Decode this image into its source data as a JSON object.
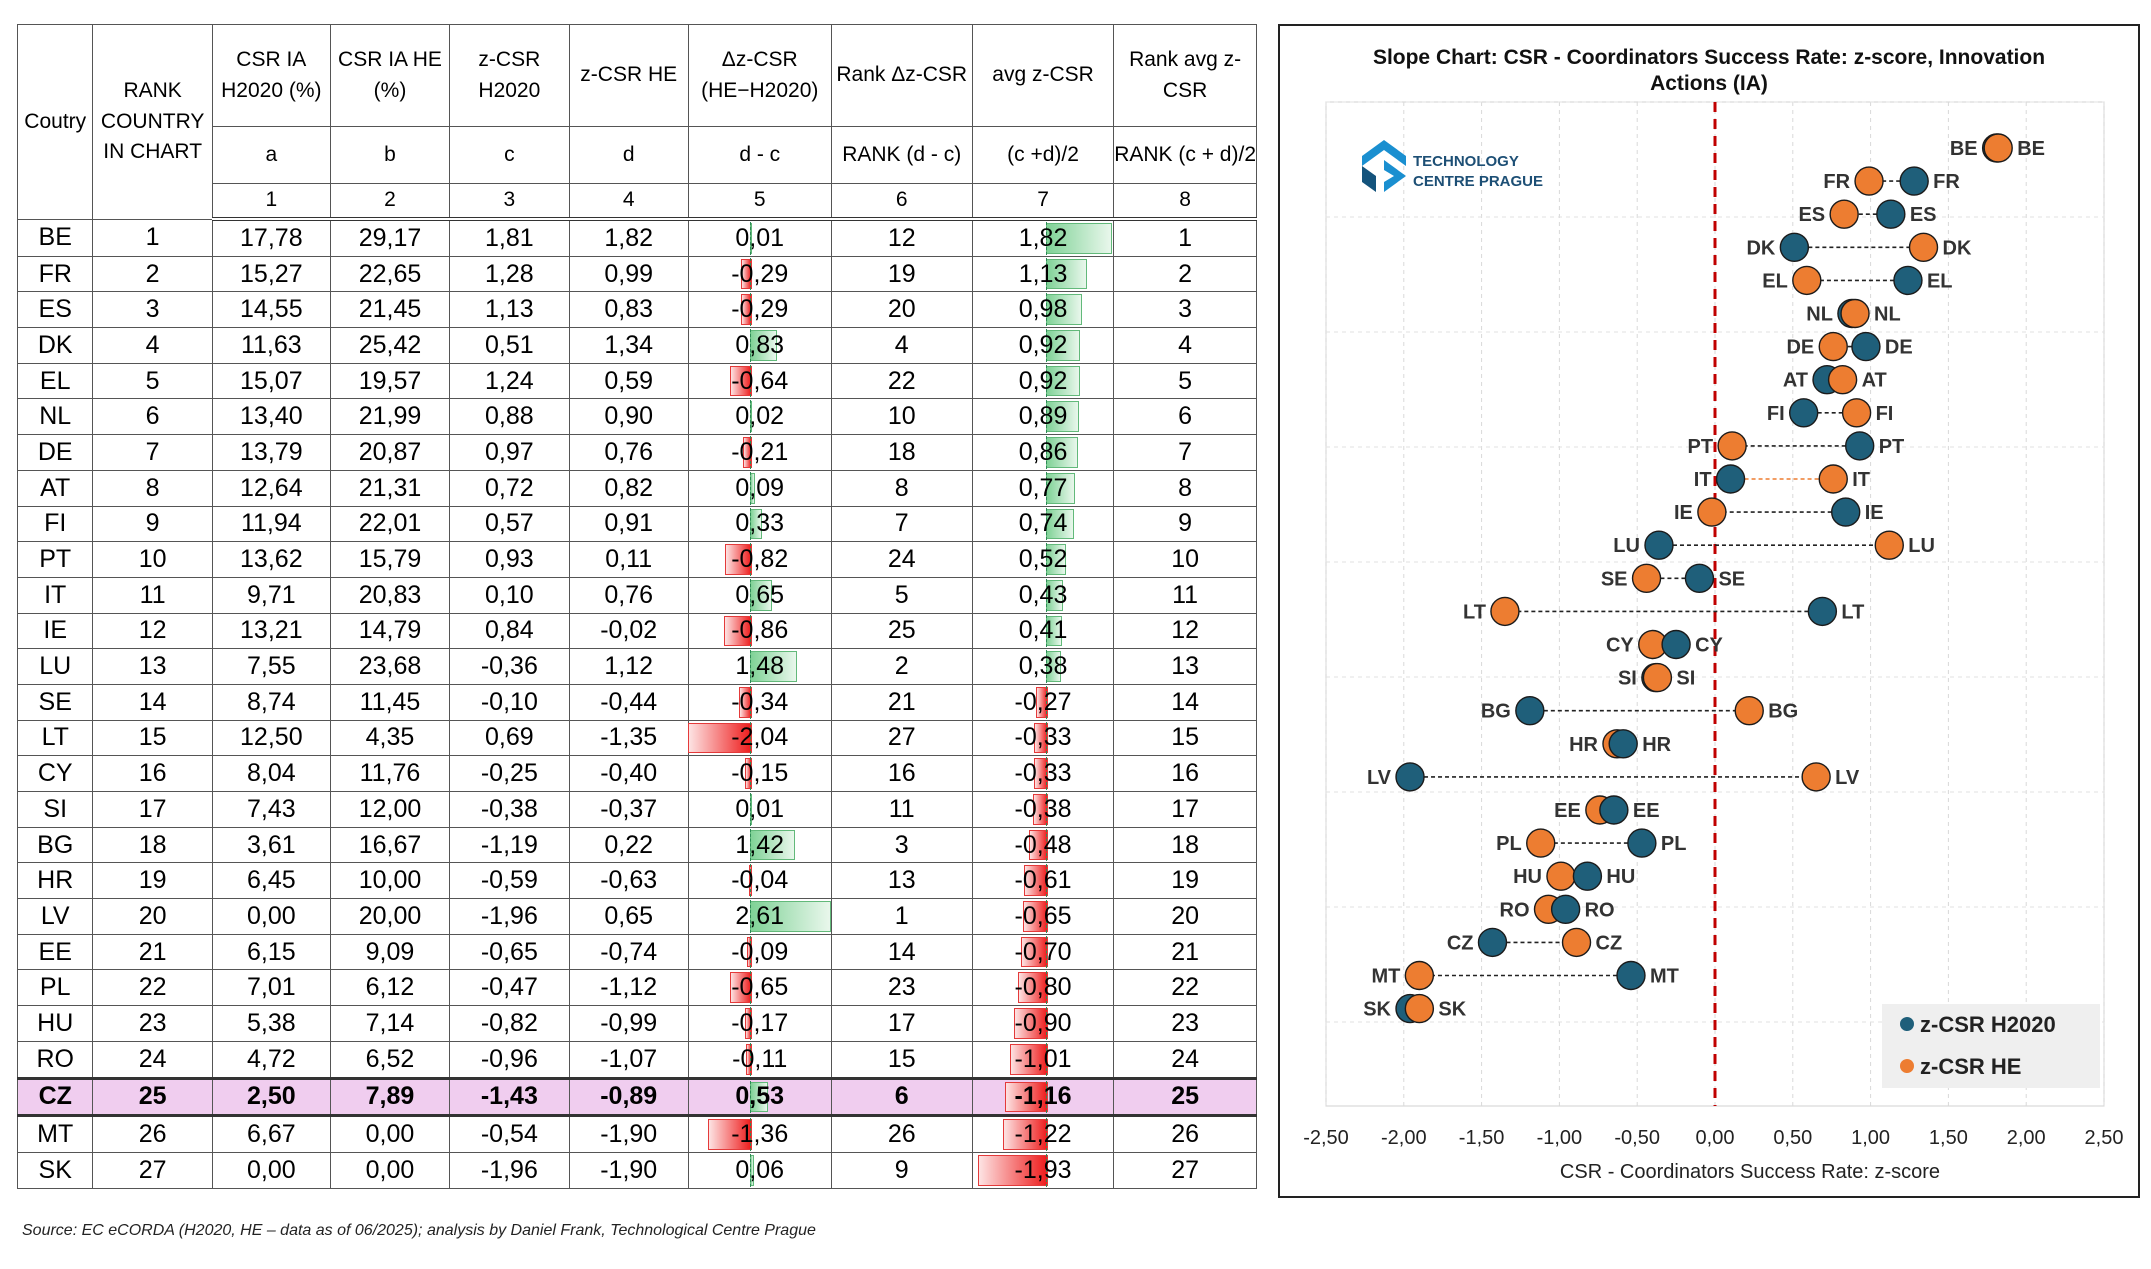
{
  "table": {
    "headers": [
      {
        "name": "Coutry",
        "formula": "",
        "index": ""
      },
      {
        "name": "RANK COUNTRY IN CHART",
        "formula": "",
        "index": ""
      },
      {
        "name": "CSR IA H2020 (%)",
        "formula": "a",
        "index": "1"
      },
      {
        "name": "CSR IA HE (%)",
        "formula": "b",
        "index": "2"
      },
      {
        "name": "z-CSR H2020",
        "formula": "c",
        "index": "3"
      },
      {
        "name": "z-CSR HE",
        "formula": "d",
        "index": "4"
      },
      {
        "name": "Δz-CSR (HE−H2020)",
        "formula": "d - c",
        "index": "5"
      },
      {
        "name": "Rank Δz-CSR",
        "formula": "RANK (d - c)",
        "index": "6"
      },
      {
        "name": "avg z-CSR",
        "formula": "(c +d)/2",
        "index": "7"
      },
      {
        "name": "Rank avg z-CSR",
        "formula": "RANK (c + d)/2",
        "index": "8"
      }
    ],
    "rows": [
      {
        "country": "BE",
        "rank": "1",
        "a": "17,78",
        "b": "29,17",
        "c": "1,81",
        "d": "1,82",
        "dz": "0,01",
        "rank_dz": "12",
        "avg": "1,82",
        "rank_avg": "1"
      },
      {
        "country": "FR",
        "rank": "2",
        "a": "15,27",
        "b": "22,65",
        "c": "1,28",
        "d": "0,99",
        "dz": "-0,29",
        "rank_dz": "19",
        "avg": "1,13",
        "rank_avg": "2"
      },
      {
        "country": "ES",
        "rank": "3",
        "a": "14,55",
        "b": "21,45",
        "c": "1,13",
        "d": "0,83",
        "dz": "-0,29",
        "rank_dz": "20",
        "avg": "0,98",
        "rank_avg": "3"
      },
      {
        "country": "DK",
        "rank": "4",
        "a": "11,63",
        "b": "25,42",
        "c": "0,51",
        "d": "1,34",
        "dz": "0,83",
        "rank_dz": "4",
        "avg": "0,92",
        "rank_avg": "4"
      },
      {
        "country": "EL",
        "rank": "5",
        "a": "15,07",
        "b": "19,57",
        "c": "1,24",
        "d": "0,59",
        "dz": "-0,64",
        "rank_dz": "22",
        "avg": "0,92",
        "rank_avg": "5"
      },
      {
        "country": "NL",
        "rank": "6",
        "a": "13,40",
        "b": "21,99",
        "c": "0,88",
        "d": "0,90",
        "dz": "0,02",
        "rank_dz": "10",
        "avg": "0,89",
        "rank_avg": "6"
      },
      {
        "country": "DE",
        "rank": "7",
        "a": "13,79",
        "b": "20,87",
        "c": "0,97",
        "d": "0,76",
        "dz": "-0,21",
        "rank_dz": "18",
        "avg": "0,86",
        "rank_avg": "7"
      },
      {
        "country": "AT",
        "rank": "8",
        "a": "12,64",
        "b": "21,31",
        "c": "0,72",
        "d": "0,82",
        "dz": "0,09",
        "rank_dz": "8",
        "avg": "0,77",
        "rank_avg": "8"
      },
      {
        "country": "FI",
        "rank": "9",
        "a": "11,94",
        "b": "22,01",
        "c": "0,57",
        "d": "0,91",
        "dz": "0,33",
        "rank_dz": "7",
        "avg": "0,74",
        "rank_avg": "9"
      },
      {
        "country": "PT",
        "rank": "10",
        "a": "13,62",
        "b": "15,79",
        "c": "0,93",
        "d": "0,11",
        "dz": "-0,82",
        "rank_dz": "24",
        "avg": "0,52",
        "rank_avg": "10"
      },
      {
        "country": "IT",
        "rank": "11",
        "a": "9,71",
        "b": "20,83",
        "c": "0,10",
        "d": "0,76",
        "dz": "0,65",
        "rank_dz": "5",
        "avg": "0,43",
        "rank_avg": "11"
      },
      {
        "country": "IE",
        "rank": "12",
        "a": "13,21",
        "b": "14,79",
        "c": "0,84",
        "d": "-0,02",
        "dz": "-0,86",
        "rank_dz": "25",
        "avg": "0,41",
        "rank_avg": "12"
      },
      {
        "country": "LU",
        "rank": "13",
        "a": "7,55",
        "b": "23,68",
        "c": "-0,36",
        "d": "1,12",
        "dz": "1,48",
        "rank_dz": "2",
        "avg": "0,38",
        "rank_avg": "13"
      },
      {
        "country": "SE",
        "rank": "14",
        "a": "8,74",
        "b": "11,45",
        "c": "-0,10",
        "d": "-0,44",
        "dz": "-0,34",
        "rank_dz": "21",
        "avg": "-0,27",
        "rank_avg": "14"
      },
      {
        "country": "LT",
        "rank": "15",
        "a": "12,50",
        "b": "4,35",
        "c": "0,69",
        "d": "-1,35",
        "dz": "-2,04",
        "rank_dz": "27",
        "avg": "-0,33",
        "rank_avg": "15"
      },
      {
        "country": "CY",
        "rank": "16",
        "a": "8,04",
        "b": "11,76",
        "c": "-0,25",
        "d": "-0,40",
        "dz": "-0,15",
        "rank_dz": "16",
        "avg": "-0,33",
        "rank_avg": "16"
      },
      {
        "country": "SI",
        "rank": "17",
        "a": "7,43",
        "b": "12,00",
        "c": "-0,38",
        "d": "-0,37",
        "dz": "0,01",
        "rank_dz": "11",
        "avg": "-0,38",
        "rank_avg": "17"
      },
      {
        "country": "BG",
        "rank": "18",
        "a": "3,61",
        "b": "16,67",
        "c": "-1,19",
        "d": "0,22",
        "dz": "1,42",
        "rank_dz": "3",
        "avg": "-0,48",
        "rank_avg": "18"
      },
      {
        "country": "HR",
        "rank": "19",
        "a": "6,45",
        "b": "10,00",
        "c": "-0,59",
        "d": "-0,63",
        "dz": "-0,04",
        "rank_dz": "13",
        "avg": "-0,61",
        "rank_avg": "19"
      },
      {
        "country": "LV",
        "rank": "20",
        "a": "0,00",
        "b": "20,00",
        "c": "-1,96",
        "d": "0,65",
        "dz": "2,61",
        "rank_dz": "1",
        "avg": "-0,65",
        "rank_avg": "20"
      },
      {
        "country": "EE",
        "rank": "21",
        "a": "6,15",
        "b": "9,09",
        "c": "-0,65",
        "d": "-0,74",
        "dz": "-0,09",
        "rank_dz": "14",
        "avg": "-0,70",
        "rank_avg": "21"
      },
      {
        "country": "PL",
        "rank": "22",
        "a": "7,01",
        "b": "6,12",
        "c": "-0,47",
        "d": "-1,12",
        "dz": "-0,65",
        "rank_dz": "23",
        "avg": "-0,80",
        "rank_avg": "22"
      },
      {
        "country": "HU",
        "rank": "23",
        "a": "5,38",
        "b": "7,14",
        "c": "-0,82",
        "d": "-0,99",
        "dz": "-0,17",
        "rank_dz": "17",
        "avg": "-0,90",
        "rank_avg": "23"
      },
      {
        "country": "RO",
        "rank": "24",
        "a": "4,72",
        "b": "6,52",
        "c": "-0,96",
        "d": "-1,07",
        "dz": "-0,11",
        "rank_dz": "15",
        "avg": "-1,01",
        "rank_avg": "24"
      },
      {
        "country": "CZ",
        "rank": "25",
        "a": "2,50",
        "b": "7,89",
        "c": "-1,43",
        "d": "-0,89",
        "dz": "0,53",
        "rank_dz": "6",
        "avg": "-1,16",
        "rank_avg": "25",
        "highlight": true
      },
      {
        "country": "MT",
        "rank": "26",
        "a": "6,67",
        "b": "0,00",
        "c": "-0,54",
        "d": "-1,90",
        "dz": "-1,36",
        "rank_dz": "26",
        "avg": "-1,22",
        "rank_avg": "26"
      },
      {
        "country": "SK",
        "rank": "27",
        "a": "0,00",
        "b": "0,00",
        "c": "-1,96",
        "d": "-1,90",
        "dz": "0,06",
        "rank_dz": "9",
        "avg": "-1,93",
        "rank_avg": "27"
      }
    ]
  },
  "source_note": "Source: EC eCORDA (H2020, HE – data as of 06/2025); analysis by Daniel Frank, Technological Centre Prague",
  "logo": {
    "line1": "TECHNOLOGY",
    "line2": "CENTRE PRAGUE"
  },
  "colors": {
    "h2020": "#1f5f7a",
    "he": "#ed7d31",
    "highlight_label": "#c00000",
    "zero_line": "#c00000",
    "highlight_row": "#f0cdef"
  },
  "chart_data": {
    "type": "scatter",
    "subtype": "dumbbell",
    "title": "Slope Chart: CSR - Coordinators Success Rate: z-score, Innovation Actions (IA)",
    "title_lines": [
      "Slope Chart: CSR - Coordinators Success Rate: z-score, Innovation",
      "Actions (IA)"
    ],
    "xlabel": "CSR - Coordinators Success Rate: z-score",
    "ylabel": "",
    "xlim": [
      -2.5,
      2.5
    ],
    "xticks": [
      "-2,50",
      "-2,00",
      "-1,50",
      "-1,00",
      "-0,50",
      "0,00",
      "0,50",
      "1,00",
      "1,50",
      "2,00",
      "2,50"
    ],
    "xtick_values": [
      -2.5,
      -2,
      -1.5,
      -1,
      -0.5,
      0,
      0.5,
      1,
      1.5,
      2,
      2.5
    ],
    "grid": true,
    "legend_position": "bottom-right",
    "highlight": "CZ",
    "categories": [
      "BE",
      "FR",
      "ES",
      "DK",
      "EL",
      "NL",
      "DE",
      "AT",
      "FI",
      "PT",
      "IT",
      "IE",
      "LU",
      "SE",
      "LT",
      "CY",
      "SI",
      "BG",
      "HR",
      "LV",
      "EE",
      "PL",
      "HU",
      "RO",
      "CZ",
      "MT",
      "SK"
    ],
    "series": [
      {
        "name": "z-CSR H2020",
        "values": [
          1.81,
          1.28,
          1.13,
          0.51,
          1.24,
          0.88,
          0.97,
          0.72,
          0.57,
          0.93,
          0.1,
          0.84,
          -0.36,
          -0.1,
          0.69,
          -0.25,
          -0.38,
          -1.19,
          -0.59,
          -1.96,
          -0.65,
          -0.47,
          -0.82,
          -0.96,
          -1.43,
          -0.54,
          -1.96
        ]
      },
      {
        "name": "z-CSR HE",
        "values": [
          1.82,
          0.99,
          0.83,
          1.34,
          0.59,
          0.9,
          0.76,
          0.82,
          0.91,
          0.11,
          0.76,
          -0.02,
          1.12,
          -0.44,
          -1.35,
          -0.4,
          -0.37,
          0.22,
          -0.63,
          0.65,
          -0.74,
          -1.12,
          -0.99,
          -1.07,
          -0.89,
          -1.9,
          -1.9
        ]
      }
    ]
  }
}
